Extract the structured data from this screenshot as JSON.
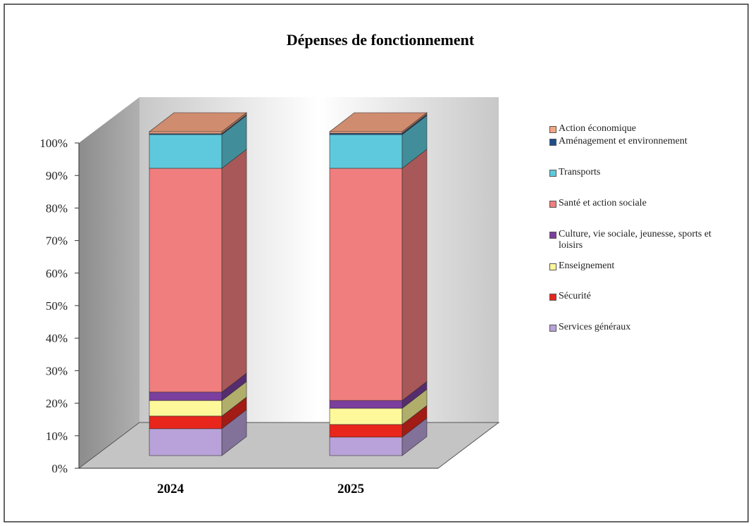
{
  "chart_data": {
    "type": "bar3d_stacked",
    "title": "Dépenses de fonctionnement",
    "categories": [
      "2024",
      "2025"
    ],
    "series": [
      {
        "name": "Services généraux",
        "color": "#b9a2d9",
        "values": [
          8.3,
          5.7
        ]
      },
      {
        "name": "Sécurité",
        "color": "#e8261c",
        "values": [
          3.9,
          3.9
        ]
      },
      {
        "name": "Enseignement",
        "color": "#fdf89a",
        "values": [
          4.8,
          5.0
        ]
      },
      {
        "name": "Culture, vie sociale, jeunesse, sports et loisirs",
        "color": "#7b3f9d",
        "values": [
          2.6,
          2.4
        ]
      },
      {
        "name": "Santé et action sociale",
        "color": "#f07e7e",
        "values": [
          69.1,
          71.7
        ]
      },
      {
        "name": "Transports",
        "color": "#5ec9dc",
        "values": [
          10.4,
          10.4
        ]
      },
      {
        "name": "Aménagement et environnement",
        "color": "#1f4e8c",
        "values": [
          0.3,
          0.4
        ]
      },
      {
        "name": "Action économique",
        "color": "#f3a582",
        "values": [
          0.6,
          0.5
        ]
      }
    ],
    "ylim": [
      0,
      100
    ],
    "yticks": [
      {
        "value": 0,
        "label": "0%"
      },
      {
        "value": 10,
        "label": "10%"
      },
      {
        "value": 20,
        "label": "20%"
      },
      {
        "value": 30,
        "label": "30%"
      },
      {
        "value": 40,
        "label": "40%"
      },
      {
        "value": 50,
        "label": "50%"
      },
      {
        "value": 60,
        "label": "60%"
      },
      {
        "value": 70,
        "label": "70%"
      },
      {
        "value": 80,
        "label": "80%"
      },
      {
        "value": 90,
        "label": "90%"
      },
      {
        "value": 100,
        "label": "100%"
      }
    ],
    "legend": "right"
  }
}
